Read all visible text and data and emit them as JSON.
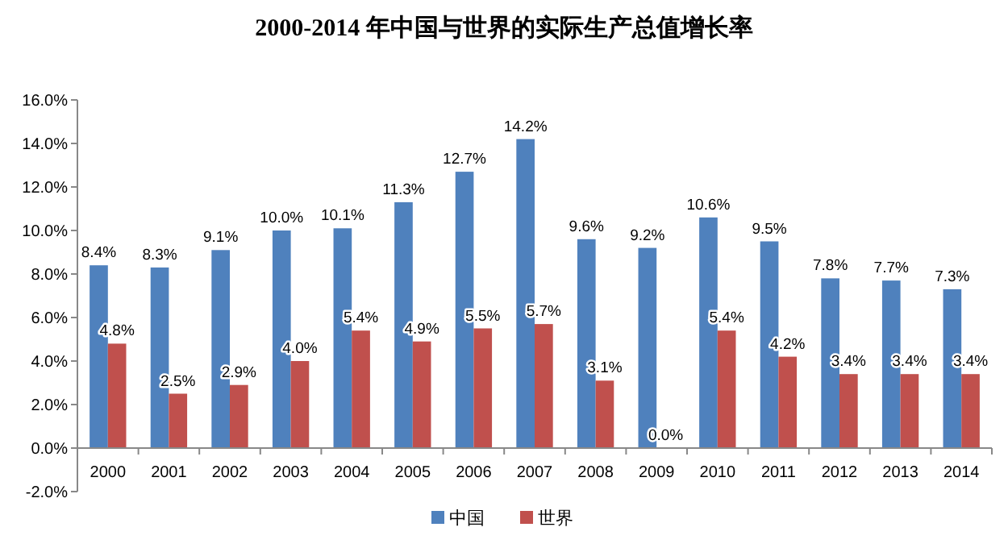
{
  "chart_data": {
    "type": "bar",
    "title": "2000-2014 年中国与世界的实际生产总值增长率",
    "categories": [
      "2000",
      "2001",
      "2002",
      "2003",
      "2004",
      "2005",
      "2006",
      "2007",
      "2008",
      "2009",
      "2010",
      "2011",
      "2012",
      "2013",
      "2014"
    ],
    "series": [
      {
        "name": "中国",
        "color": "#4f81bd",
        "values": [
          8.4,
          8.3,
          9.1,
          10.0,
          10.1,
          11.3,
          12.7,
          14.2,
          9.6,
          9.2,
          10.6,
          9.5,
          7.8,
          7.7,
          7.3
        ],
        "value_labels": [
          "8.4%",
          "8.3%",
          "9.1%",
          "10.0%",
          "10.1%",
          "11.3%",
          "12.7%",
          "14.2%",
          "9.6%",
          "9.2%",
          "10.6%",
          "9.5%",
          "7.8%",
          "7.7%",
          "7.3%"
        ]
      },
      {
        "name": "世界",
        "color": "#c0504d",
        "values": [
          4.8,
          2.5,
          2.9,
          4.0,
          5.4,
          4.9,
          5.5,
          5.7,
          3.1,
          0.0,
          5.4,
          4.2,
          3.4,
          3.4,
          3.4
        ],
        "value_labels": [
          "4.8%",
          "2.5%",
          "2.9%",
          "4.0%",
          "5.4%",
          "4.9%",
          "5.5%",
          "5.7%",
          "3.1%",
          "0.0%",
          "5.4%",
          "4.2%",
          "3.4%",
          "3.4%",
          "3.4%"
        ]
      }
    ],
    "ylim": [
      -2,
      16
    ],
    "yticks": [
      {
        "value": -2,
        "label": "-2.0%"
      },
      {
        "value": 0,
        "label": "0.0%"
      },
      {
        "value": 2,
        "label": "2.0%"
      },
      {
        "value": 4,
        "label": "4.0%"
      },
      {
        "value": 6,
        "label": "6.0%"
      },
      {
        "value": 8,
        "label": "8.0%"
      },
      {
        "value": 10,
        "label": "10.0%"
      },
      {
        "value": 12,
        "label": "12.0%"
      },
      {
        "value": 14,
        "label": "14.0%"
      },
      {
        "value": 16,
        "label": "16.0%"
      }
    ],
    "grid": false,
    "legend": "bottom"
  }
}
